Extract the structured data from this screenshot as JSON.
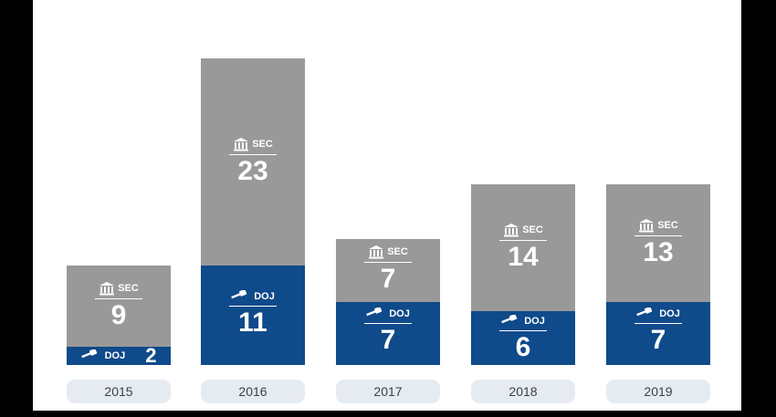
{
  "chart_data": {
    "type": "bar",
    "stacked": true,
    "categories": [
      "2015",
      "2016",
      "2017",
      "2018",
      "2019"
    ],
    "series": [
      {
        "name": "DOJ",
        "icon": "gavel-icon",
        "color": "#0f4a8a",
        "values": [
          2,
          11,
          7,
          6,
          7
        ]
      },
      {
        "name": "SEC",
        "icon": "bank-icon",
        "color": "#999999",
        "values": [
          9,
          23,
          7,
          14,
          13
        ]
      }
    ],
    "title": "",
    "xlabel": "",
    "ylabel": "",
    "ylim": [
      0,
      34
    ],
    "grid": false,
    "legend": "none"
  },
  "colors": {
    "background": "#ffffff",
    "category_pill": "#e6ebf1",
    "frame": "#000000"
  }
}
